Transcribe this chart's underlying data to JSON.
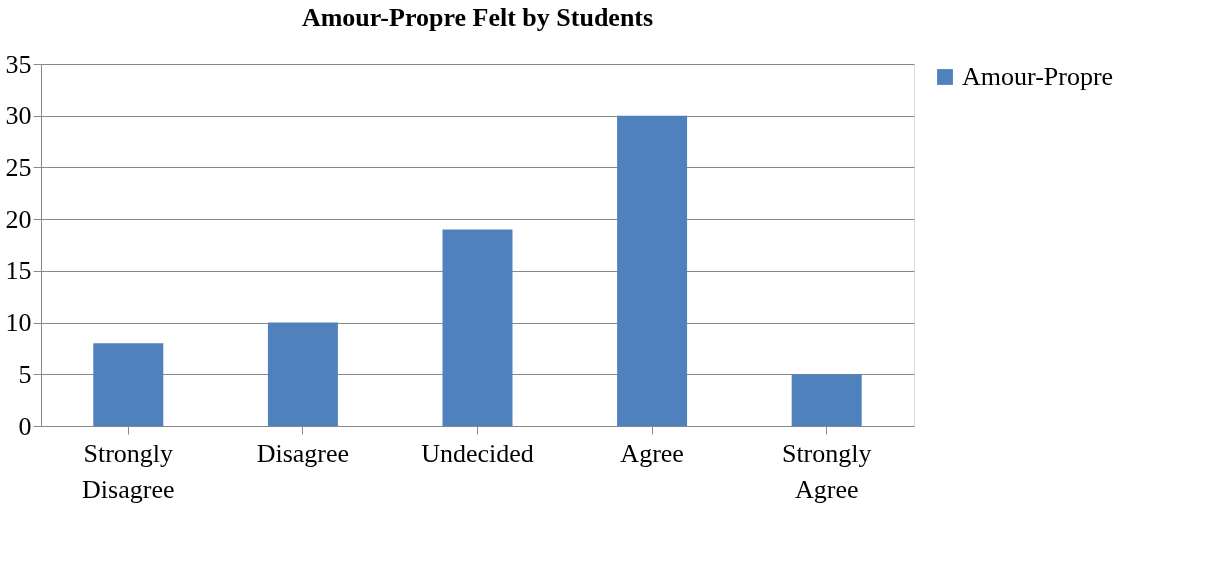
{
  "chart_data": {
    "type": "bar",
    "title": "Amour-Propre Felt by Students",
    "categories": [
      "Strongly Disagree",
      "Disagree",
      "Undecided",
      "Agree",
      "Strongly Agree"
    ],
    "series": [
      {
        "name": "Amour-Propre",
        "color": "#4f81bd",
        "values": [
          8,
          10,
          19,
          30,
          5
        ]
      }
    ],
    "ylim": [
      0,
      35
    ],
    "yticks": [
      0,
      5,
      10,
      15,
      20,
      25,
      30,
      35
    ],
    "grid": "y",
    "legend": "right"
  }
}
